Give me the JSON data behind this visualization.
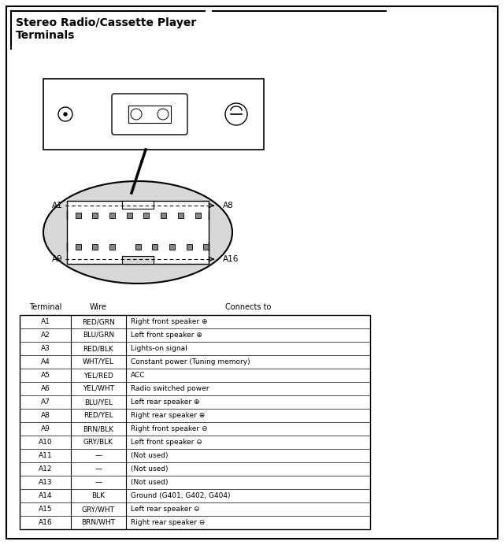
{
  "title_line1": "Stereo Radio/Cassette Player",
  "title_line2": "Terminals",
  "bg_color": "#ffffff",
  "table_headers": [
    "Terminal",
    "Wire",
    "Connects to"
  ],
  "table_rows": [
    [
      "A1",
      "RED/GRN",
      "Right front speaker ⊕"
    ],
    [
      "A2",
      "BLU/GRN",
      "Left front speaker ⊕"
    ],
    [
      "A3",
      "RED/BLK",
      "Lights-on signal"
    ],
    [
      "A4",
      "WHT/YEL",
      "Constant power (Tuning memory)"
    ],
    [
      "A5",
      "YEL/RED",
      "ACC"
    ],
    [
      "A6",
      "YEL/WHT",
      "Radio switched power"
    ],
    [
      "A7",
      "BLU/YEL",
      "Left rear speaker ⊕"
    ],
    [
      "A8",
      "RED/YEL",
      "Right rear speaker ⊕"
    ],
    [
      "A9",
      "BRN/BLK",
      "Right front speaker ⊖"
    ],
    [
      "A10",
      "GRY/BLK",
      "Left front speaker ⊖"
    ],
    [
      "A11",
      "—",
      "(Not used)"
    ],
    [
      "A12",
      "—",
      "(Not used)"
    ],
    [
      "A13",
      "—",
      "(Not used)"
    ],
    [
      "A14",
      "BLK",
      "Ground (G401, G402, G404)"
    ],
    [
      "A15",
      "GRY/WHT",
      "Left rear speaker ⊖"
    ],
    [
      "A16",
      "BRN/WHT",
      "Right rear speaker ⊖"
    ]
  ]
}
